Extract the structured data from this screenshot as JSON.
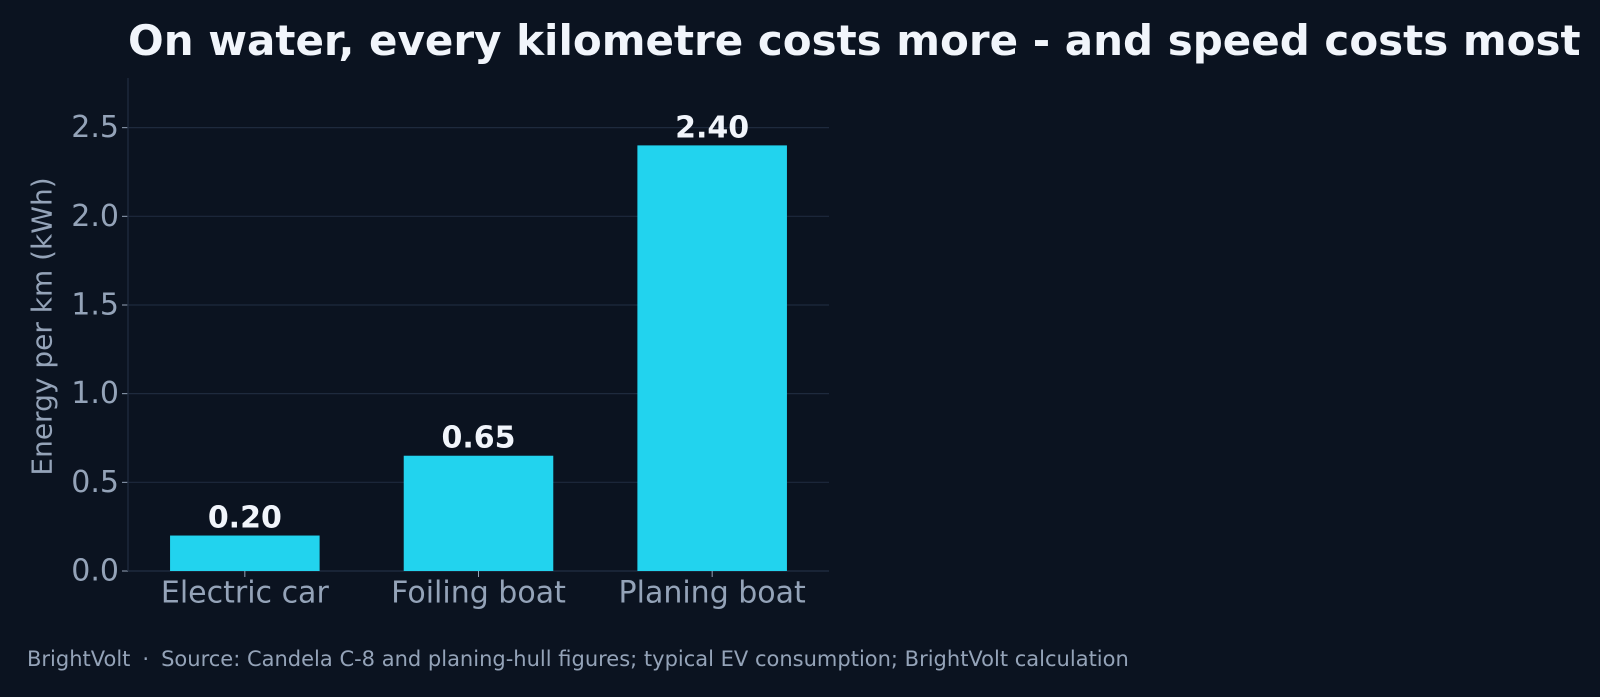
{
  "title": "On water, every kilometre costs more - and speed costs most",
  "footer": {
    "brand": "BrightVolt",
    "separator": "·",
    "source": "Source: Candela C-8 and planing-hull figures; typical EV consumption; BrightVolt calculation"
  },
  "colors": {
    "background": "#0b1320",
    "bar": "#22d3ee",
    "grid": "#1e2a3d",
    "axis_text": "#94a3b8",
    "label_text": "#f1f5fb"
  },
  "chart_data": {
    "type": "bar",
    "title": "On water, every kilometre costs more - and speed costs most",
    "xlabel": "",
    "ylabel": "Energy per km (kWh)",
    "categories": [
      "Electric car",
      "Foiling boat",
      "Planing boat"
    ],
    "values": [
      0.2,
      0.65,
      2.4
    ],
    "value_labels": [
      "0.20",
      "0.65",
      "2.40"
    ],
    "ylim": [
      0,
      2.78
    ],
    "yticks": [
      0,
      0.5,
      1.0,
      1.5,
      2.0,
      2.5
    ],
    "ytick_labels": [
      "0.0",
      "0.5",
      "1.0",
      "1.5",
      "2.0",
      "2.5"
    ],
    "grid": "horizontal",
    "legend": "none"
  }
}
